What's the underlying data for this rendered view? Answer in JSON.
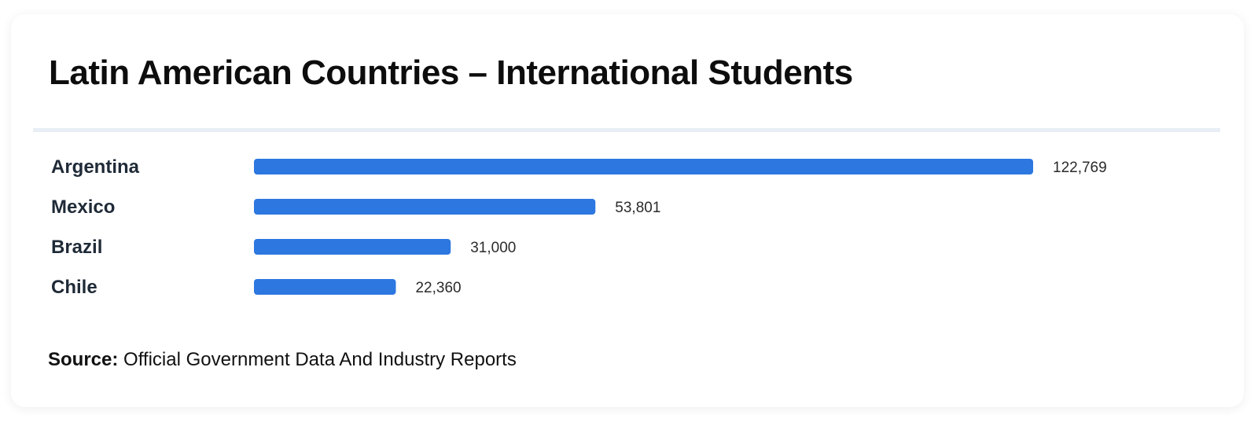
{
  "title": "Latin American Countries – International Students",
  "source": {
    "label": "Source:",
    "text": "Official Government Data And Industry Reports"
  },
  "colors": {
    "bar": "#2c77e0"
  },
  "chart_data": {
    "type": "bar",
    "orientation": "horizontal",
    "categories": [
      "Argentina",
      "Mexico",
      "Brazil",
      "Chile"
    ],
    "values": [
      122769,
      53801,
      31000,
      22360
    ],
    "value_labels": [
      "122,769",
      "53,801",
      "31,000",
      "22,360"
    ],
    "xlim": [
      0,
      122769
    ],
    "grid": false,
    "legend": "none"
  }
}
